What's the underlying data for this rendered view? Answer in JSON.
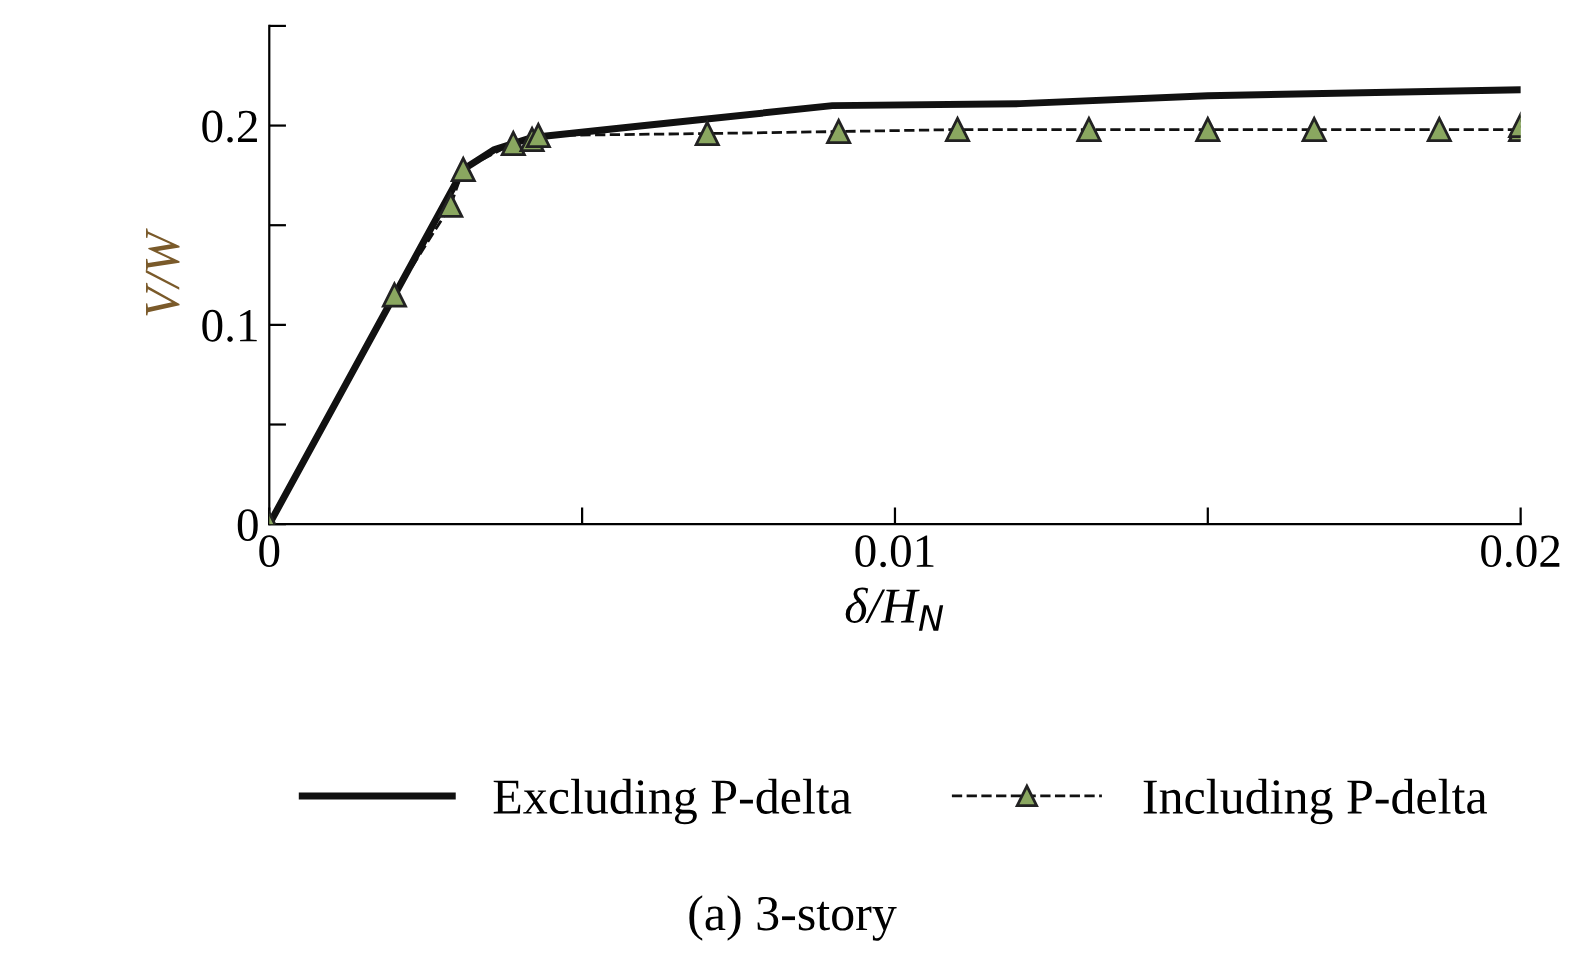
{
  "chart_data": {
    "type": "line",
    "xlabel": "δ/H$_{N}$",
    "ylabel": "V/W",
    "xlim": [
      0,
      0.02
    ],
    "ylim": [
      0,
      0.25
    ],
    "xticks": [
      0,
      {
        "value": 0.005,
        "label": null
      },
      0.01,
      {
        "value": 0.015,
        "label": null
      },
      0.02
    ],
    "yticks": [
      0,
      {
        "value": 0.05,
        "label": null
      },
      0.1,
      {
        "value": 0.15,
        "label": null
      },
      0.2,
      {
        "value": 0.25,
        "label": null
      }
    ],
    "series": [
      {
        "name": "Excluding P-delta",
        "color": "#111111",
        "line_style": "solid",
        "marker": "none",
        "x": [
          0,
          0.0031,
          0.0036,
          0.0042,
          0.006,
          0.009,
          0.012,
          0.015,
          0.02
        ],
        "values": [
          0,
          0.178,
          0.188,
          0.194,
          0.2,
          0.21,
          0.211,
          0.215,
          0.218
        ]
      },
      {
        "name": "Including P-delta",
        "color": "#8aa760",
        "line_style": "dashed",
        "marker": "triangle",
        "x": [
          0,
          0.002,
          0.0029,
          0.0031,
          0.0039,
          0.0042,
          0.0043,
          0.007,
          0.0091,
          0.011,
          0.0131,
          0.015,
          0.0167,
          0.0187,
          0.02,
          0.02
        ],
        "values": [
          0,
          0.115,
          0.16,
          0.178,
          0.191,
          0.193,
          0.195,
          0.196,
          0.197,
          0.198,
          0.198,
          0.198,
          0.198,
          0.198,
          0.198,
          0.2
        ]
      }
    ],
    "legend": "bottom",
    "grid": false,
    "annotations": [
      "(a) 3-story"
    ]
  }
}
